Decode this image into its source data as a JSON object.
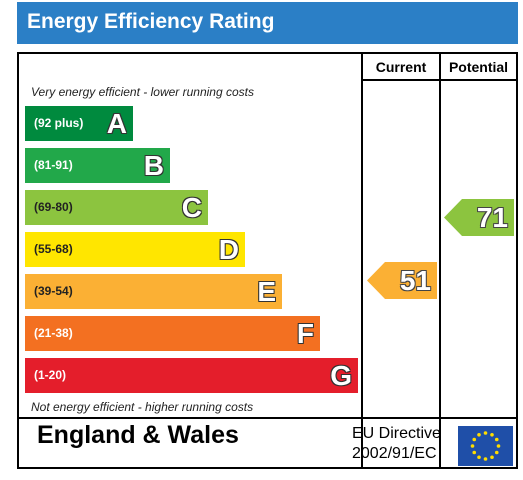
{
  "header": {
    "title": "Energy Efficiency Rating"
  },
  "columns": {
    "current": "Current",
    "potential": "Potential"
  },
  "captions": {
    "top": "Very energy efficient - lower running costs",
    "bottom": "Not energy efficient - higher running costs"
  },
  "bands": [
    {
      "letter": "A",
      "range": "(92 plus)",
      "color": "#008a3e"
    },
    {
      "letter": "B",
      "range": "(81-91)",
      "color": "#22a84a"
    },
    {
      "letter": "C",
      "range": "(69-80)",
      "color": "#8cc43f"
    },
    {
      "letter": "D",
      "range": "(55-68)",
      "color": "#ffe600"
    },
    {
      "letter": "E",
      "range": "(39-54)",
      "color": "#fbb034"
    },
    {
      "letter": "F",
      "range": "(21-38)",
      "color": "#f37021"
    },
    {
      "letter": "G",
      "range": "(1-20)",
      "color": "#e41e2b"
    }
  ],
  "current": {
    "value": "51",
    "band": "E",
    "color": "#fbb034"
  },
  "potential": {
    "value": "71",
    "band": "C",
    "color": "#8cc43f"
  },
  "footer": {
    "region": "England & Wales",
    "directive_line1": "EU Directive",
    "directive_line2": "2002/91/EC",
    "flag_color": "#1f4fa8",
    "star_color": "#ffdd00"
  }
}
